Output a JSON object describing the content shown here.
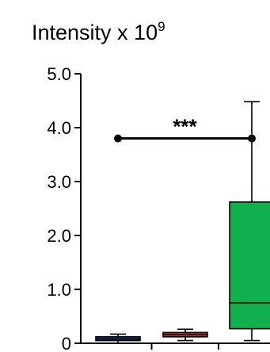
{
  "chart_data": {
    "type": "box",
    "title": "Intensity x 10",
    "title_superscript": "9",
    "xlabel": "",
    "ylabel": "",
    "ylim": [
      0,
      5.0
    ],
    "y_ticks": [
      "0",
      "1.0",
      "2.0",
      "3.0",
      "4.0",
      "5.0"
    ],
    "y_tick_values": [
      0,
      1.0,
      2.0,
      3.0,
      4.0,
      5.0
    ],
    "grid": false,
    "series": [
      {
        "color": "#1f3f9a",
        "min": 0.0,
        "q1": 0.05,
        "median": 0.08,
        "q3": 0.12,
        "max": 0.17
      },
      {
        "color": "#c8332b",
        "min": 0.05,
        "q1": 0.12,
        "median": 0.16,
        "q3": 0.2,
        "max": 0.26
      },
      {
        "color": "#10b04f",
        "min": 0.05,
        "q1": 0.27,
        "median": 0.75,
        "q3": 2.62,
        "max": 4.48
      }
    ],
    "annotations": [
      {
        "text": "***",
        "from_group": 0,
        "to_group": 2,
        "y": 3.8
      }
    ]
  }
}
